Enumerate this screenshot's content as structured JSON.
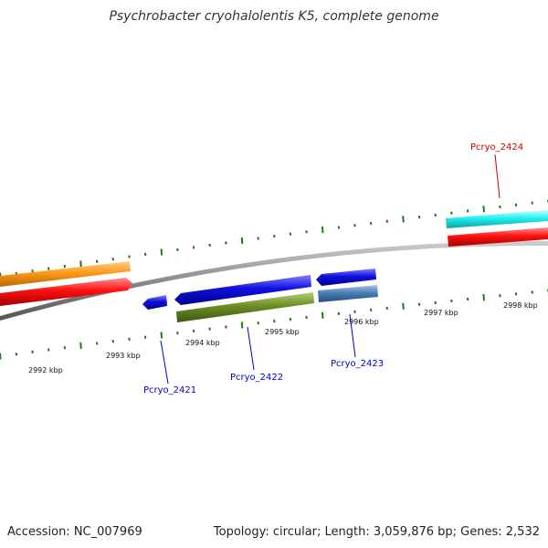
{
  "title": "Psychrobacter cryohalolentis K5, complete genome",
  "footer": {
    "accession": "Accession: NC_007969",
    "summary": "Topology: circular; Length: 3,059,876 bp; Genes: 2,532"
  },
  "scale_labels": [
    "2992 kbp",
    "2993 kbp",
    "2994 kbp",
    "2995 kbp",
    "2996 kbp",
    "2997 kbp",
    "2998 kbp"
  ],
  "gene_labels": {
    "pcryo_2421": "Pcryo_2421",
    "pcryo_2422": "Pcryo_2422",
    "pcryo_2423": "Pcryo_2423",
    "pcryo_2424": "Pcryo_2424"
  },
  "colors": {
    "backbone": "#8c8c8c",
    "tick": "#1a7a1a",
    "orange_feature": "#ff9a1a",
    "red_feature": "#ff1010",
    "blue_feature": "#1010e0",
    "olive_feature": "#6b8e23",
    "steelblue_feature": "#4a7fb5",
    "cyan_feature": "#22f0f0",
    "label_blue": "#0000cc",
    "label_red": "#cc0000"
  }
}
